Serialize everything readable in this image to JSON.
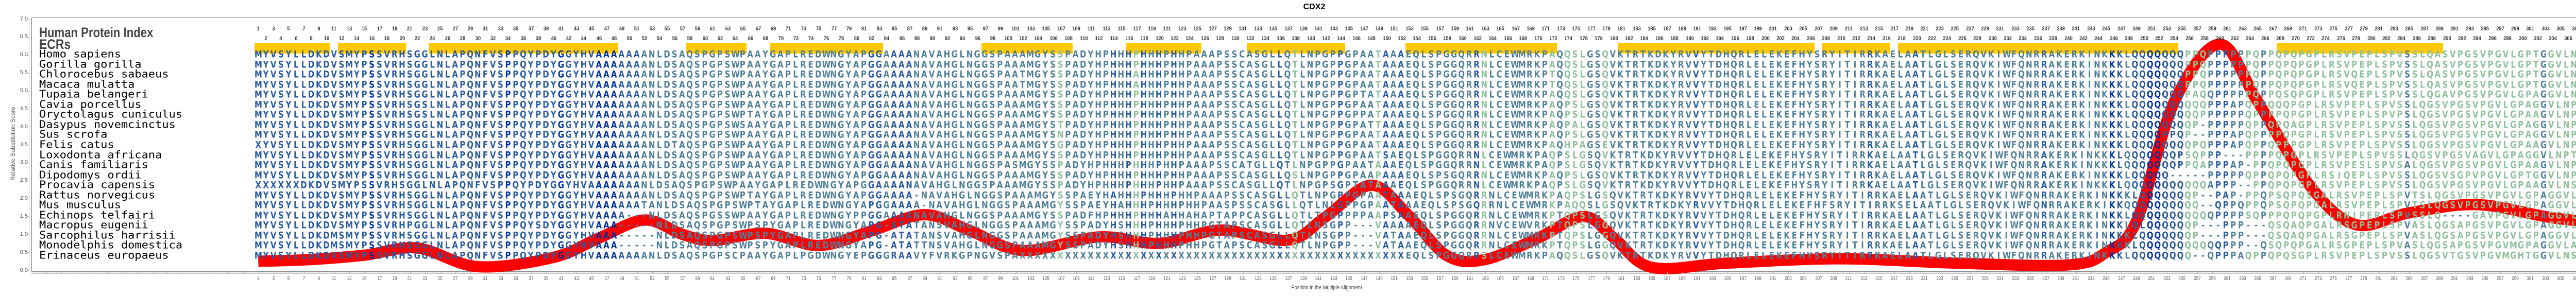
{
  "header": {
    "title": "CDX2",
    "hpi_label": "Human Protein Index",
    "ecr_label": "ECRs"
  },
  "axes": {
    "ylabel": "Relative Substitution Score",
    "xlabel": "Position in the Multiple Alignment",
    "yticks": [
      "7.0",
      "6.5",
      "6.0",
      "5.5",
      "5.0",
      "4.5",
      "4.0",
      "3.5",
      "3.0",
      "2.5",
      "2.0",
      "1.5",
      "1.0",
      "0.5",
      "0.0"
    ]
  },
  "alignment_length": 313,
  "ecrs": [
    [
      1,
      10
    ],
    [
      12,
      20
    ],
    [
      24,
      48
    ],
    [
      58,
      65
    ],
    [
      69,
      83
    ],
    [
      97,
      108
    ],
    [
      116,
      125
    ],
    [
      132,
      144
    ],
    [
      153,
      172
    ],
    [
      181,
      206
    ],
    [
      208,
      216
    ],
    [
      218,
      254
    ],
    [
      268,
      289
    ]
  ],
  "colors": {
    "curve": "#ff0000",
    "ecr": "#ffc800",
    "conserved": "#0033a0",
    "mid": "#2a5b9c",
    "low": "#4f7f98",
    "variable": "#8fc09c"
  },
  "species": [
    {
      "name": "Homo sapiens",
      "seq": "MYVSYLLDKDVSMYPSSVRHSGGLNLAPQNFVSPPQYPDYGGYHVAAAAAAANLDSAQSPGPSWPAAYGAPLREDWNGYAPGGAAAANAVAHGLNGGSPAAAMGYSSPADYHPHHHPHHHPHHPAAAPSSCASGLLQTLNPGPPGPAATAAAEQLSPGGQRRNLCEWMRKPAQQSLGSQVKTRTKDKYRVVYTDHQRLELEKEFHYSRYITIRRKAELAATLGLSERQVKIWFQNRRAKERKINKKKLQQQQQQQPPQPPPPPPQPPQPQPGPLRSVPEPLSPVSSLQASVPGSVPGVLGPTGGVLNPTVTQ"
    },
    {
      "name": "Gorilla gorilla",
      "seq": "MYVSYLLDKDVSMYPSSVRHSGGLNLAPQNFVSPPQYPDYGGYHVAAAAAAANLDSAQSPGPSWPAAYGAPLREDWNGYAPGGAAAANAVAHGLNGGSPAAAMGYSSPADYHPHHHPHHHPHHPAAAPSSCASGLLQTLNPGPPGPAATAAAEQLSPGGQRRNLCEWMRKPAQQSLGSQVKTRTKDKYRVVYTDHQRLELEKEFHYSRYITIRRKAELAATLGLSERQVKIWFQNRRAKERKINKKKLQQQQQQQPPQPPPPPPQPPQPQPGPLRSVPEPLSPVSSLQASVPGSVPGVLGPTGGVLNPTVTQ"
    },
    {
      "name": "Chlorocebus sabaeus",
      "seq": "MYVSYLLDKDVSMYPSSVRHSGGLNLAPQNFVSPPQYPDYGGYHVAAAAAAANLDSAQSPGPSWPAAYGAPLREDWNGYAPGGAAAANAVAHGLNGGSPAATMGYSSPADYHPHHHAHHHPHHPAAAPSSCASGLLQTLNPGPPGPAATAAAEQLSPGGQRRNLCEWMRKPTQQSLGSQVKTRTKDKYRVVYTDHQRLELEKEFHYSRYITIRRKAELAATLGLSERQVKIWFQNRRAKERKINKKKLQQQQQQQPPQPPPPPPQPPQPQPGPLRSVQEPLSPVSSLQASVPGSVPGVLGPTGGVLNPTVTQ"
    },
    {
      "name": "Macaca mulatta",
      "seq": "MYVSYLLDKDVSMYPSSVRHSGGLNLAPQNFVSPPQYPDYGGYHVAAAAAAANLDSAQSPGPSWPAAYGAPLREDWNGYAPGGAAAANAVAHGLNGGSPAATMGYSSPADYHPHHHAHHHPHHPAAAPSSCASGLLQTLNPGPPGPAATAAAEQLSPGGQRRNLCEWMRKPTQQSLGSQVKTRTKDKYRVVYTDHQRLELEKEFHYSRYITIRRKAELAATLGLSERQVKIWFQNRRAKERKINKKKLQQQQQQQPPQPPPPPPQPPQPQPGPLRSVQEPLSPVSSLQASVPGSVPGVLGPTGGVLNPTVTQ"
    },
    {
      "name": "Tupaia belangeri",
      "seq": "MYVSYLLDKDVSMYPSSVRHSGGLNLAPQNFVSPPQYPDYGGYHVAAAAAAANLDSAQSPGPSWPAAYGAPLREDWNGYAPGGAAAANAVAHGLNGGSPAAAMGYSSPADYHPHHHPHHHPHHPAAAPSSCASGLLQTLNPGPPGPTATAAAEQLSPGGQRRNLCEWMRKPAQQSLGSQVKTRTKDKYRVVYTDHQRLELEKEFHYSRYITIRRKAELAATLGLSERQVKIWFQNRRAKERKINKKKLQQQQQQQPAQQPPPPPQPPQSQPGPLRSVPEPLSPVSSLQGAVPGSVPGVLGPAGGVLNPTVTQ"
    },
    {
      "name": "Cavia porcellus",
      "seq": "MYVSYLLDKDVSMYPSSVRHSGSLNLAPQNFVSPPQYPDYGGYHVAAAAAAANLDSAQSPGPSWPAAYGAPLREDWNGYAPGGAAAANAVAHGLNGGSPAAAMGYSSPADYHPHHHPHHHPHHPAAAPSSCASGLLQTLNPGPPGPAATAAAEQLSPGGQRRNLCEWMRKPAQPSLGSQVKTRTKDKYRVVYTDHQRLELEKEFHYSRYITIRRKAELAATLGLSERQVKIWFQNRRAKERKINKKKLQQQQQQQQQQPPPAPQPPQQQPGPLRSVPEPLSPVSSLQGSVPGSVPGVLGPAGGVLNPTVTQ"
    },
    {
      "name": "Oryctolagus cuniculus",
      "seq": "MYVSYLLDKDVSMYPSSVRHSGSLNLAPQNFVSPPQYPDYGGYHVAAAAAAANLDSAQSPGPSWPTAYGAPLREDWNGYAPGGAAAANAVAHGLNGGSPAAAMGYSSPADYHPHHHPHHHPHHPAAAPSSCASGLLQTLNPGPPGPPATAAAEQLSPGGQRRNLCEWMRKPAQPSLGSQVKTRTKDKYRVVYTDHQRLELEKEFHYSRYITIRRKAELAATLGLSERQVKIWFQNRRAKERKINKKKLQQQQQQQQQPPPPPPQPPPPQPGPLRSVPEPLSPVPSLQGSVPGSVPGVLGPAAGVLNPTVTQ"
    },
    {
      "name": "Dasypus novemcinctus",
      "seq": "MYVSYLLDKDVSMYPSSVRHSGGLNLAPQNFVSPPQYPDYGGYHVAAAAAAANLDSAQSPGPSWSAAYGAPLREDWNGYAPGGAAAANAVAHGLNGGSPAAAMGYSTPADYHPHHHPHHHPHHPAAAPSSCASGLLQTLNPGPPGPATTAAAEQLSPGGQRRNLCEWMRKPAQPALGSQVKTRTKDKYRVVYTDHQRLELEKEFHYSRYITIRRKAELAATLGLSERQVKIWFQNRRAKERKINKKKLQQQQQQQQP-PPPPPQPPQPQAGPLRSVPEPLSPVSSLQGSVPGSVPGVLGPAGGVLNPTVTQ"
    },
    {
      "name": "Sus scrofa",
      "seq": "MYVSYLLDKDVSMYPSSVRHSGGLNLAPQNFVSPPQYPDYGGYHVAAAAAAANLDSAQSPGPSWPAAYGAPLREDWNGYAPGGAAAANAVAHGLNGGSPAAAMGYSNPADYHPHHHPHHHPHHPAAAPSSCASGLLQTLNPGPPGPAATAAAEQLSPGGQRRNLCEWMRKPAQPSLGSQVKTRTKDKYRVVYTDHQRLELEKEFHYSRYITIRRKAELAATLGLSERQVKIWFQNRRAKERKINKKKLQQQQPPQP--PPPAPQPPPPQPGPLRSVPEPLSPVSSLQGSVPGSVPGVLGPAGGVLNPTVTQ"
    },
    {
      "name": "Felis catus",
      "seq": "XYVSYLLDKDVSMYPSSVRHSGGLNLAPQNFVSPPQYPDYGGYHVAAAAAAANLDTAQSPGPSWPAAYGAPLREDWNGYAPGGAAAANAVAHGLNGGSPAAAMGYSGPADYHPHHHPHHHPHHPAAAPSSCASGLLQTLNPGPPGPAATAAAEQLSPGGQRRNLCEWMRKPAQHPAGSEVKTRTKDKYRVVYTDHQRLELEKEFHYSRYITIRRKAELAATLGLSERQVKIWFQNRRAKERKINKKKLQQQQQQQQPQPPPAPQPPQPPPGPLRSVPEPLSPVSSLQGSVPGSVPGVLGPAAGVLNPTVTQ"
    },
    {
      "name": "Loxodonta africana",
      "seq": "MYVSYLLDKDVSMYPSSVRHSGGLNLAPQNFVSPPQYPDYGGYHVAAAAAAANLDSAQSPGPSWPAAYGAPLREDWNGYAPGGAAAANAVAHGLNGGSPAAAMGYSSPADYHPHHHPHHHPHHPAAAPSSCASGLLQTLNPGPPGPAATSAEQLSPGGQRRNLCEWMRKPAQPSLGSQVKTRTKDKYRVVYTDHQRLELEKEFHYSRYITIRRKAELAATLGLSERQVKIWFQNRRAKERKINKKKLQQQQQQQPSQPPP---PPPPQPGPLRSVPEPLSPVSSLQGSVPGSVAGVLGPAGGVLNPTVTQ"
    },
    {
      "name": "Canis familiaris",
      "seq": "MYVSYLLDKDVSMYPSSVRHSGGLNLAPQNFVSPPQYPDYGGYHVAAAAAAANLDSAQSPGPSWPAAYGAPLREDWNGYAPGGAAAANAVAHGLNGGSPASMGYSSPADYHPHHHPHHHPHHPAAAPSSCATGLLQTLNPGPPGPAATAAAEQLSPGGQRRNLCEWMRKPAQPSLGSQVKTRTKDKYRVVYTDHQRLELEKEFHYSRYITIRRKAELAATLGLSERQVKIWFQNRRAKERKINKKKLQQQQQQQPPQAPPPAP-PPQPQPGPLRSVPESLSPVSALQGSVPGSVPGVLGPAAGVLNPTVTQ"
    },
    {
      "name": "Dipodomys ordii",
      "seq": "MYVSYLLDKDVSMYPSSVRHSGGLNLAPQNFVSPPQYPDYGGYHVAAAAAAANLDSAQSPGPSWPAAYGAPLREDWNGYAPGGAAAANAVAHGLNGGSPAAAMGYSSPADYHPHHHPHHHPHHPAAAPSSCASGLLQSLNPGPPGPAAPAAAEQLSPSGQRRNLCEWMRKPAQPSLGSQVKTRTKDKYRVVYTDHQRLELEKEFHYSRYITIRRKAELAATLGLSERQVKIWFQNRRAKERKINKKKLQQQQQ-----PPPPPQPPQPQPGPLRSIQEPLSPVSSLQGSVSGPVPGVLGPTGGVLNPTVTQ"
    },
    {
      "name": "Procavia capensis",
      "seq": "XXXXXXDKDVSMYPSSVRHSGGLNLAPQNFVSPPQYPDYGGYHVAAAAAAANLDSAQSPGPSWPAAYGAPLREDWNGYAPGGAAAANAVAHGLNGGSPAAAMGYSSPADYHPHHHPHHHPHHPAAAPSSCASGLLQTLNPGPSGPTATAAAEQLSPGGQRRNLCEWMRKPAQPSLGSQVKTRTKDKYRVVYTDHQRLELEKEFHYSRYITIRRKAELAATLGLSERQVKIWFQNRRAKERKINKKKLQQQQQQQQQQQAPPP--PPQPQPGPLRSVPEPLSPVSSLQGSVPGSVPGVLGPAAGVLNSTVTQ"
    },
    {
      "name": "Rattus norvegicus",
      "seq": "MYVSYLLDKDVSMYPSSVRHSGGLNLAPQNFVSPPQYPDYGGYHVAAAAAAANLDSAQSPGPSWPTAYGAPLREDWNGYAPGGAAAA-NAVAHGLNGGSPAAAMGYSSPAEYHAHHHPHHHPHHPAAAPSSCASGLLQTLNPGPPGPAATAAAEQLSPSGQRRNLCEWMRKPAQPSLGSQVKTRTKDKYRVVYTDHQRLELEKEFHYSRYITIRRKAELAATLGLSERQVKIWFQNRRAKERKINKKKLQQQQQQQP--PAP-PPQPSQPQSGALRSVPEPLSPVTSLQGSVPGSVPGVLGPAGGVLNSTVTQ"
    },
    {
      "name": "Mus musculus",
      "seq": "MYVSYLLDKDVSMYPSSVRHSGGLNLAPQNFVSPPQYPDYGGYHVAAAAAATANLDSAQSPGPSWPTAYGAPLREDWNGYAPGGAAAA-NAVAHGLNGGSPAAAMGYSSPAEYHAHHHPHHHPHHPAASPSSCASGLLQTLNLGPPGPAATAAAEQLSPSGQRRNLCEWMRKPAQQSLGSQVKTRTKDKYRVVYTDHQRLELEKEFHFSRYITIRRKSELAATLGLSERQVKIWFQNRRAKERKIKKQQQQQQQQQQ--QPPQPPQPSQPQPGALRSVPEPLSPVTSLQGSVPGSVPGVLGPAGGVLNSTVTQ"
    },
    {
      "name": "Echinops telfairi",
      "seq": "MYVSYLLDKDVSMYPSSVRHSGGLNLAPQNFVSPPQYPDYGGYHVAAAA---NLDSAQSPGSSWPAAYGAPLREDWNGYPPGGAAAANAVAHGLNGGSPAAAMGYSSPADFHPHHHPHHHAHHAHAPTAPPCASGLLQTLTPGPPPPAAPSAAEQLSPGGQRRNLCEWMRKPTQPSLGSQVKTRTKDKYRVVYTDHQRLELEKEFHYSRYITIRRKAELAATLGLSERQVKIWFQNRRAKERKINKKLQQQQQQQQQQQPPPPSQPPPQPQPGPLRNIPEPLSPVSSLQ----GAVPGVLGPAGGVLNPXXXX"
    },
    {
      "name": "Macropus eugenii",
      "seq": "MYVSYLLDKDVSMYPSSVRHPGGLNLAPQNFVSPPQYSDYGGYHVAAA-----NLDSAQSPGPSWPSPYGAPLREDWNGYAPG-ATATANSVAHGLNGGSPAAAMGYSSPADYHSHHHPHHHPHHPGTAPSCASGLLQTLNSGPP---VAAAAEQLSPGGQRRNVCEWVRKPTQPSLGGQVKTRTKDKYRVVYTDHQRLELEKEFHYSRYITIRRKAELAATLGLSERQVKIWFQNRRAKERKINKKLQLQQQQQQP---PPP---QSQAQPGALRSGPEPLSPVASLQGSAPGSVPGVLGPAGGVLAPTITQ"
    },
    {
      "name": "Sarcophilus harrisii",
      "seq": "MYVSYLLDKDMSMYPSSVRHSGGLNLAPQNFVSPPQYPDYGGYHVAAA-----NLDSAQSPGPSWPSPYGAPLREDWNGYAPG-ATATANSVAHGLNGGSPAAAMGYSSPADYHSHHHPHHHPHHPGTAPSCASGLLQTLNSGPP---VATAAEQLSPGGQRRNLCEWMRKPTQPSLGGQVKTRTKDKYRVVYTDHQRLELEKEFHYSRYITIRRKAELAATLGLSERQVKIWFQNRRAKERKINKKKLQQQQQQQP---PPP---QSQAQPGALRSGPEPLSPVASLQGSAPGSVPGVLGPAGGVLAPTITQ"
    },
    {
      "name": "Monodelphis domestica",
      "seq": "MYVSYLLDKDMSMYPSSVRHSSGLNLAPQNFVSPPQYPDYGGYHVAAA-----NLDSAQSPGPSWPSPYGAPLREDWNGYAPG-ATATTNSVAHGLNGGSPAAAMGYSSPADYHSHHHPHHHPHHPGTAPSCASGLLQTLNPGPP---VATAAEQLSPGGQRRNLCEWMRKPTQPSLGGQVKTRTKDKYRVVYTDHQRLELEKEFHYSRYITIRRKAELAATLGLSERQVKIWFQNRRAKERKINKKKLQQQQQQQQQQQPPP--QSQPQPGALRSGPEPLSPVASLQGSAPGSVPGVMGPAGGVLAPTITQ"
    },
    {
      "name": "Erinaceus europaeus",
      "seq": "MYVSYLLDKDVSMYPSSVRHSGGLNLAPQNFVSPPQYPDYGGYHVAAAAAAANLDSAQSPGPSCPAAYGAPLPGDWNGYEPGGGRAAVYFVRKGPNGVSPAXXXXXXXXXXXXXXXXXXXXXXXXXXXXXXXXXXXXXXXXXXXXXXXXXXXEQLSPGGQRRSLCEWMRKPAQQSLGSQVKTRTKDKYRVVYTDHQRLELEKEFHYSRYITIRRKAELAATLGLSERQVKIWFQNRRAKERKINKKKLQQQQQQQQ--QPPPAQPPQPQSGPLRSVPEPLSPVSSLQGSVTGSVPGVMGHTGGVLNSTVTQ"
    }
  ],
  "chart_data": {
    "type": "line",
    "title": "CDX2",
    "xlabel": "Position in the Multiple Alignment",
    "ylabel": "Relative Substitution Score",
    "xlim": [
      1,
      313
    ],
    "ylim": [
      0,
      7
    ],
    "series": [
      {
        "name": "Relative Substitution Score",
        "x": [
          1,
          8,
          15,
          22,
          30,
          40,
          46,
          52,
          57,
          61,
          68,
          75,
          82,
          89,
          95,
          102,
          112,
          120,
          128,
          137,
          142,
          148,
          153,
          158,
          163,
          170,
          176,
          180,
          185,
          195,
          210,
          225,
          240,
          245,
          249,
          254,
          260,
          265,
          272,
          278,
          285,
          294,
          304,
          313
        ],
        "y": [
          0.25,
          0.3,
          0.42,
          0.62,
          0.1,
          0.36,
          0.9,
          1.4,
          1.0,
          0.83,
          1.03,
          0.69,
          1.1,
          1.55,
          1.1,
          0.55,
          0.93,
          0.75,
          1.12,
          0.84,
          1.5,
          2.37,
          1.5,
          0.4,
          0.3,
          0.9,
          1.5,
          0.9,
          0.08,
          0.2,
          0.32,
          0.2,
          0.15,
          0.5,
          1.37,
          4.7,
          6.3,
          4.7,
          2.33,
          1.27,
          1.6,
          1.83,
          1.46,
          1.27
        ]
      }
    ]
  }
}
